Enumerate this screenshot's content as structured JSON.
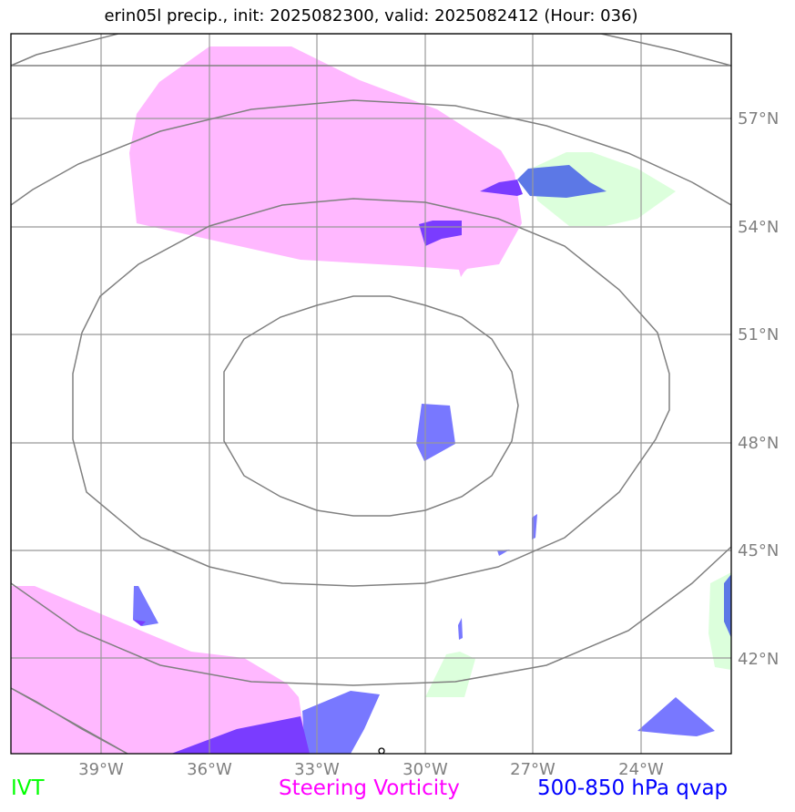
{
  "title": "erin05l precip., init: 2025082300, valid: 2025082412 (Hour: 036)",
  "map": {
    "lat_labels": [
      "57°N",
      "54°N",
      "51°N",
      "48°N",
      "45°N",
      "42°N"
    ],
    "lon_labels": [
      "39°W",
      "36°W",
      "33°W",
      "30°W",
      "27°W",
      "24°W"
    ]
  },
  "legend": [
    {
      "label": "IVT",
      "color": "#00ff00"
    },
    {
      "label": "Steering Vorticity",
      "color": "#ff00ff"
    },
    {
      "label": "500-850 hPa qvap",
      "color": "#0000ff"
    }
  ],
  "colors": {
    "ivt_fill": "#dcffdc",
    "vorticity_fill": "#ffb8ff",
    "qvap_fill": "#7878ff",
    "qvap_dark": "#7a3cff",
    "qvap_mid": "#5c78e6",
    "contour": "#808080",
    "grid": "#999999"
  }
}
